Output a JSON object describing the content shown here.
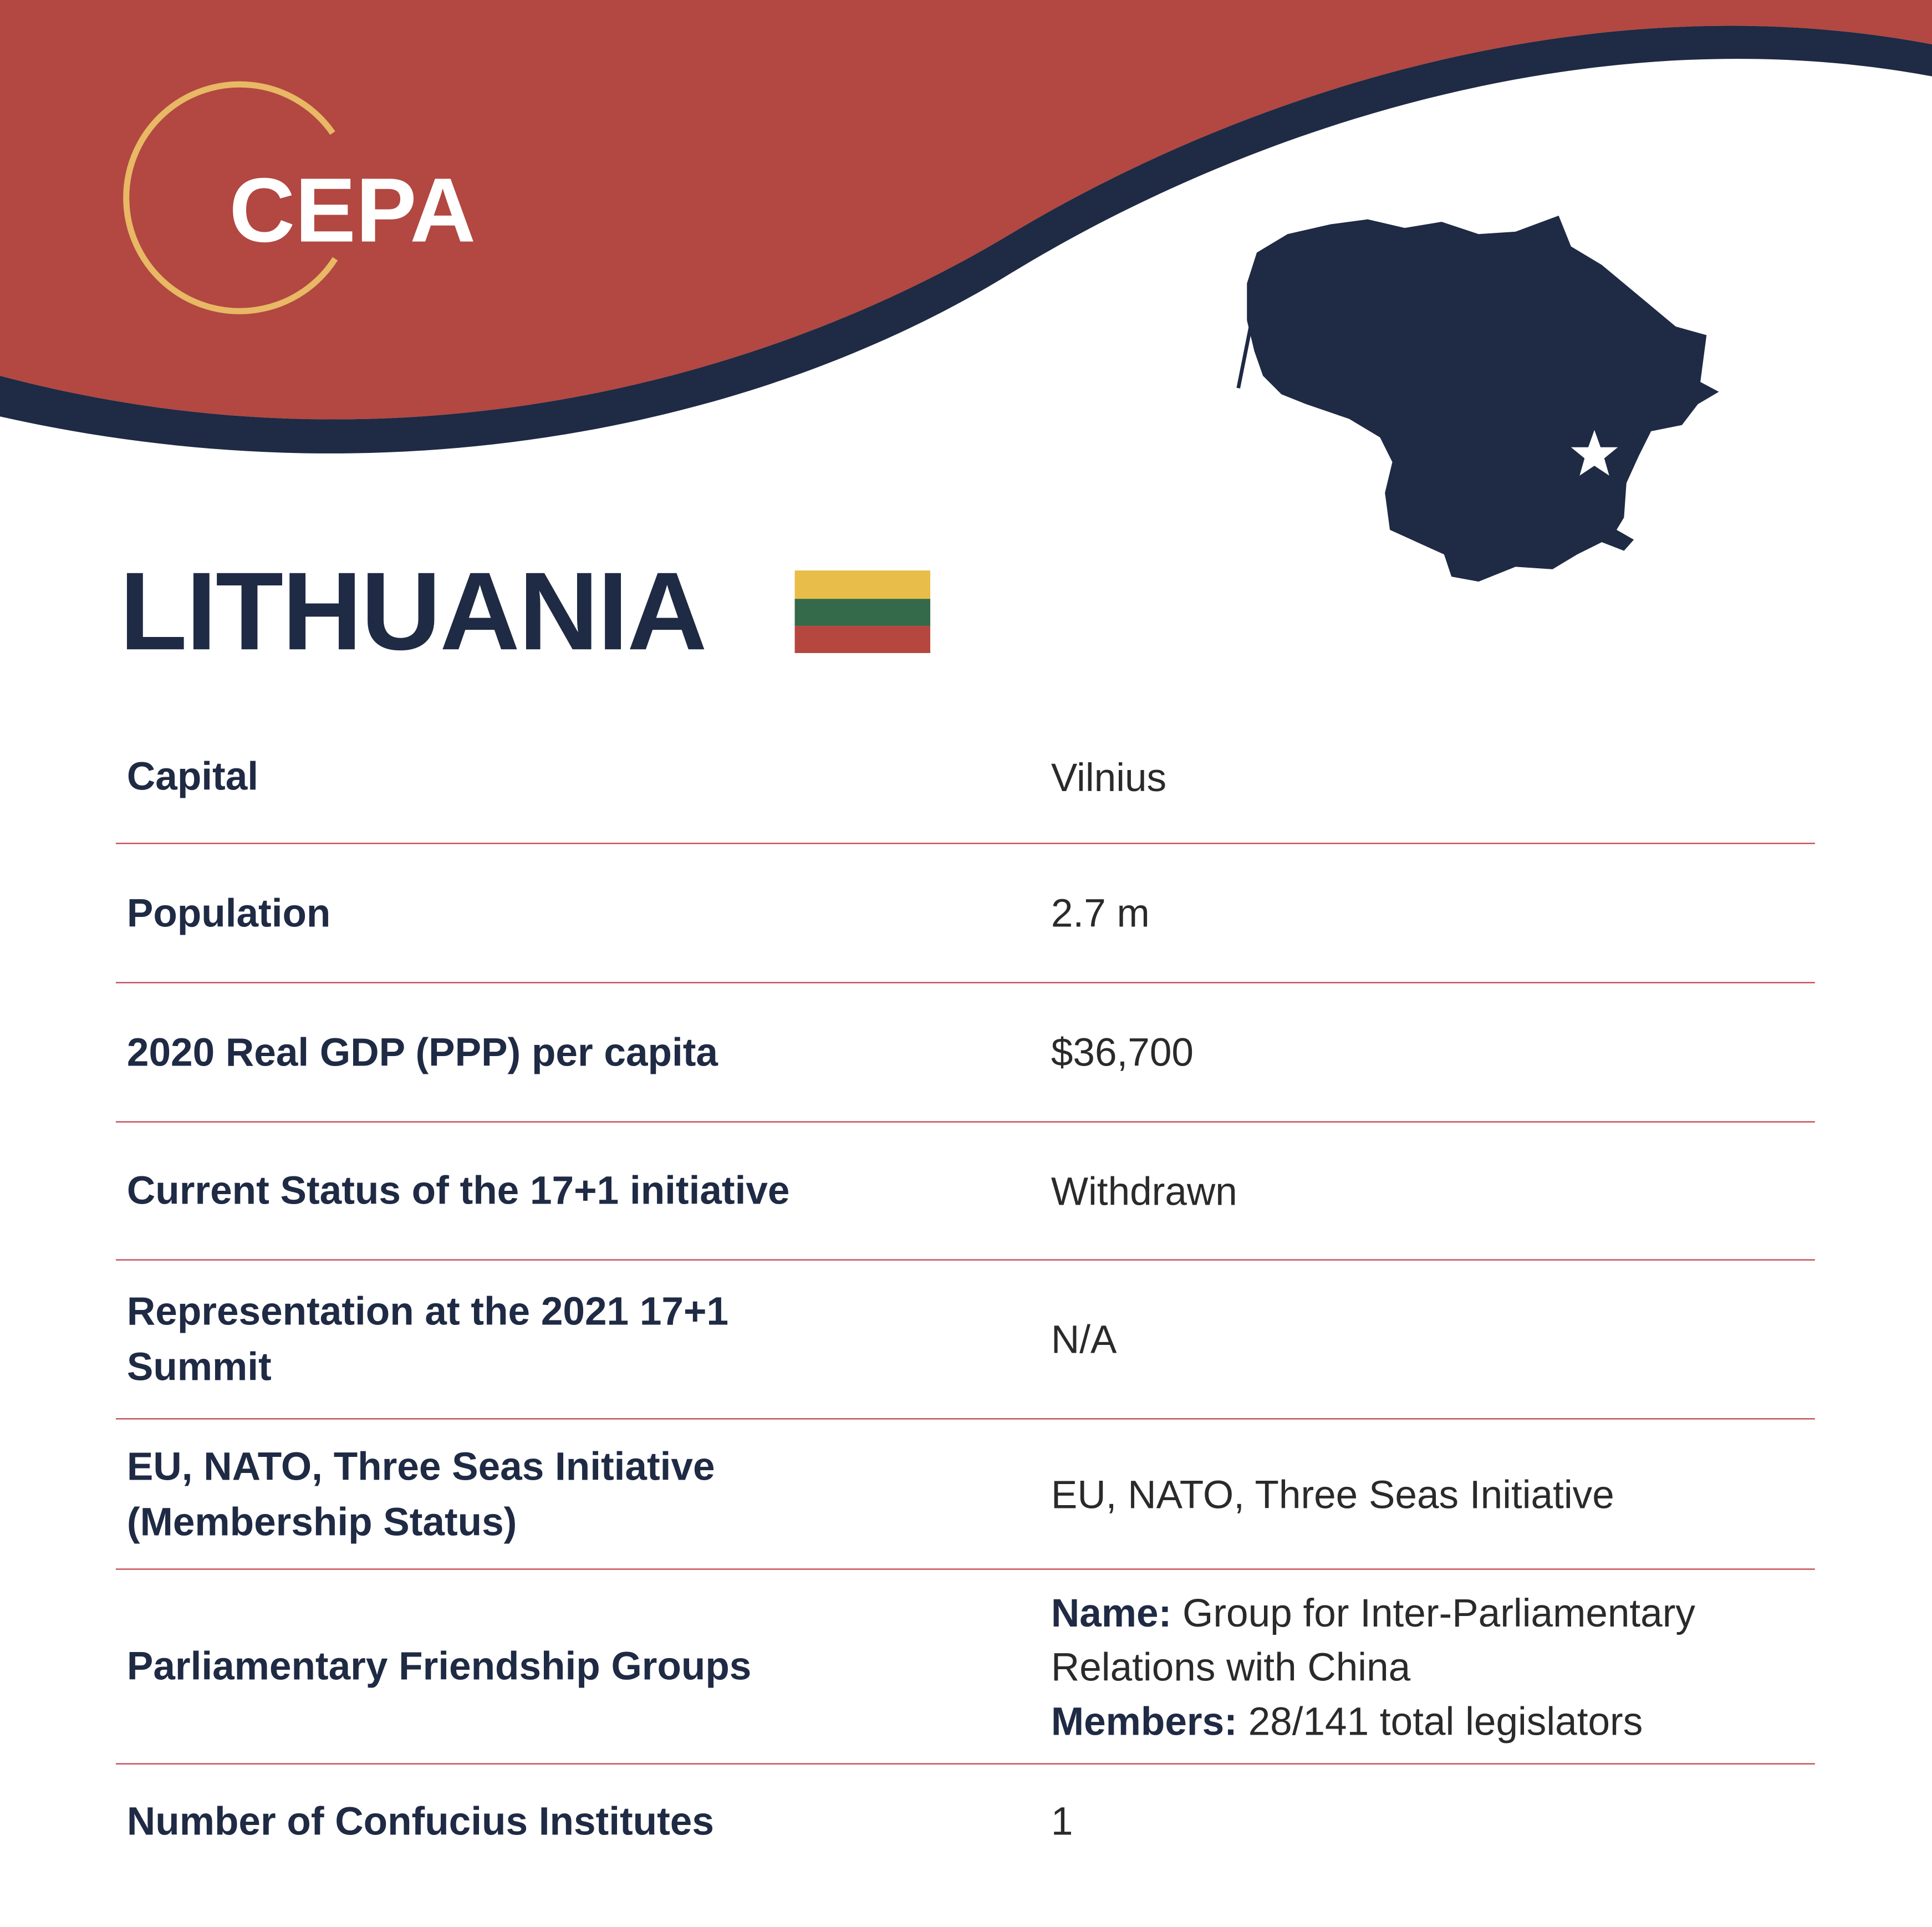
{
  "header": {
    "logo": "CEPA",
    "title": "LITHUANIA"
  },
  "table": {
    "rows": [
      [
        "Capital",
        "Vilnius"
      ],
      [
        "Population",
        "2.7 m"
      ],
      [
        "2020 Real GDP (PPP) per capita",
        "$36,700"
      ],
      [
        "Current Status of the 17+1 initiative",
        "Withdrawn"
      ],
      [
        "Representation at the 2021 17+1 Summit",
        "N/A"
      ],
      [
        "EU, NATO, Three Seas Initiative (Membership Status)",
        "EU, NATO, Three Seas Initiative"
      ],
      [
        "Parliamentary Friendship Groups",
        {
          "name_label": "Name:",
          "name": "Group for Inter-Parliamentary Relations with China",
          "members_label": "Members:",
          "members": "28/141 total legislators"
        }
      ],
      [
        "Number of Confucius Institutes",
        "1"
      ]
    ]
  }
}
